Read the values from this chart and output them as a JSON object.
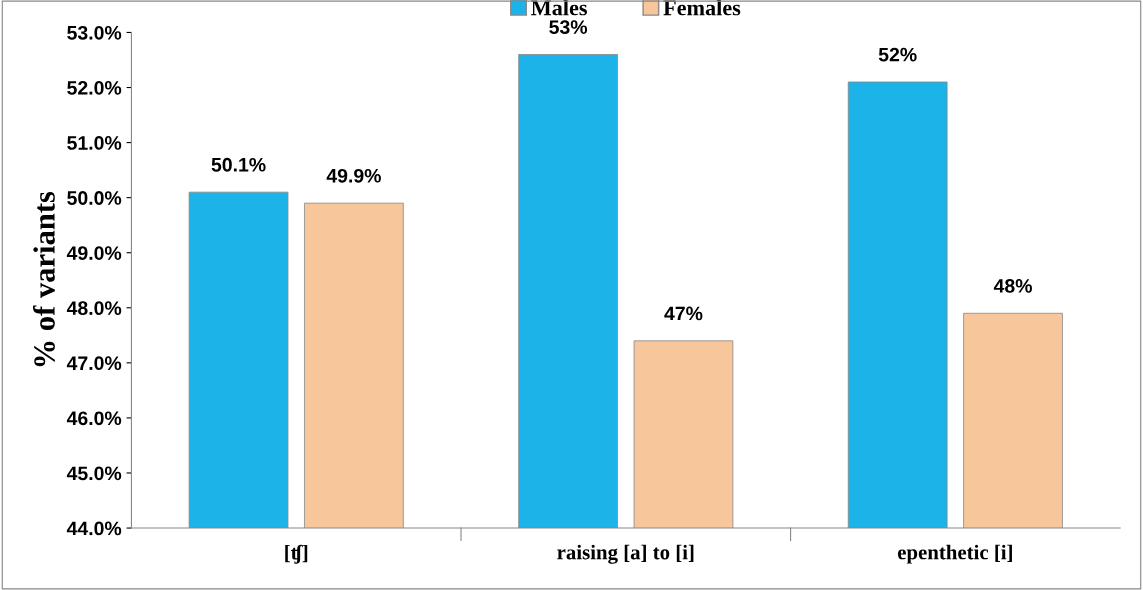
{
  "chart_data": {
    "type": "bar",
    "ylabel": "% of variants",
    "categories": [
      "[ʧ]",
      "raising [a] to [i]",
      "epenthetic [i]"
    ],
    "series": [
      {
        "name": "Males",
        "color": "#1bb3e8",
        "values": [
          50.1,
          52.6,
          52.1
        ],
        "value_labels": [
          "50.1%",
          "53%",
          "52%"
        ]
      },
      {
        "name": "Females",
        "color": "#f7c69a",
        "values": [
          49.9,
          47.4,
          47.9
        ],
        "value_labels": [
          "49.9%",
          "47%",
          "48%"
        ]
      }
    ],
    "ylim": [
      44,
      53
    ],
    "yticks": [
      {
        "value": 44,
        "label": "44.0%"
      },
      {
        "value": 45,
        "label": "45.0%"
      },
      {
        "value": 46,
        "label": "46.0%"
      },
      {
        "value": 47,
        "label": "47.0%"
      },
      {
        "value": 48,
        "label": "48.0%"
      },
      {
        "value": 49,
        "label": "49.0%"
      },
      {
        "value": 50,
        "label": "50.0%"
      },
      {
        "value": 51,
        "label": "51.0%"
      },
      {
        "value": 52,
        "label": "52.0%"
      },
      {
        "value": 53,
        "label": "53.0%"
      }
    ],
    "grid": false,
    "legend": "top"
  }
}
